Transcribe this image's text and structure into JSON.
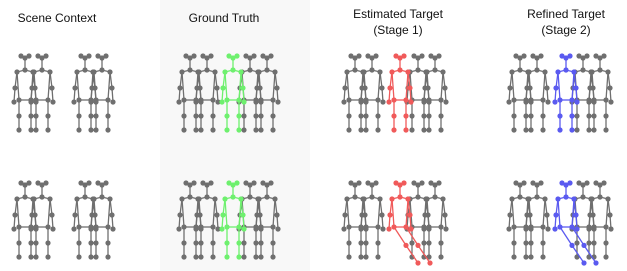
{
  "panels": [
    {
      "title": "Scene Context"
    },
    {
      "title": "Ground Truth"
    },
    {
      "title": "Estimated Target",
      "subtitle": "(Stage 1)"
    },
    {
      "title": "Refined Target",
      "subtitle": "(Stage 2)"
    }
  ]
}
